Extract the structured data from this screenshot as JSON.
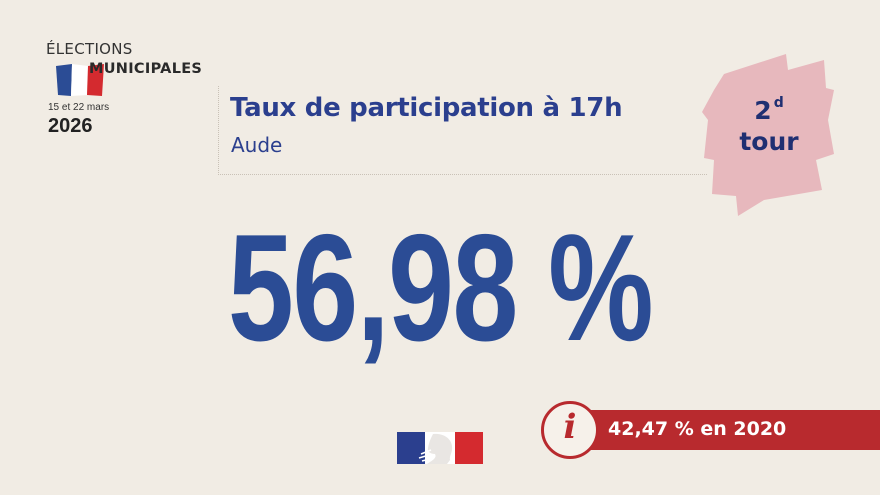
{
  "logo": {
    "line1": "ÉLECTIONS",
    "line2": "MUNICIPALES",
    "dates": "15 et 22 mars",
    "year": "2026"
  },
  "header": {
    "title": "Taux de participation à 17h",
    "subtitle": "Aude"
  },
  "badge": {
    "number": "2",
    "superscript": "d",
    "word": "tour"
  },
  "main": {
    "value": "56,98 %"
  },
  "info": {
    "text": "42,47 % en 2020",
    "icon": "info-icon"
  },
  "colors": {
    "background": "#f1ece4",
    "primary_blue": "#2b4c95",
    "title_blue": "#2b3f8e",
    "red": "#b82a2e",
    "badge_pink": "#e7b8bd"
  }
}
